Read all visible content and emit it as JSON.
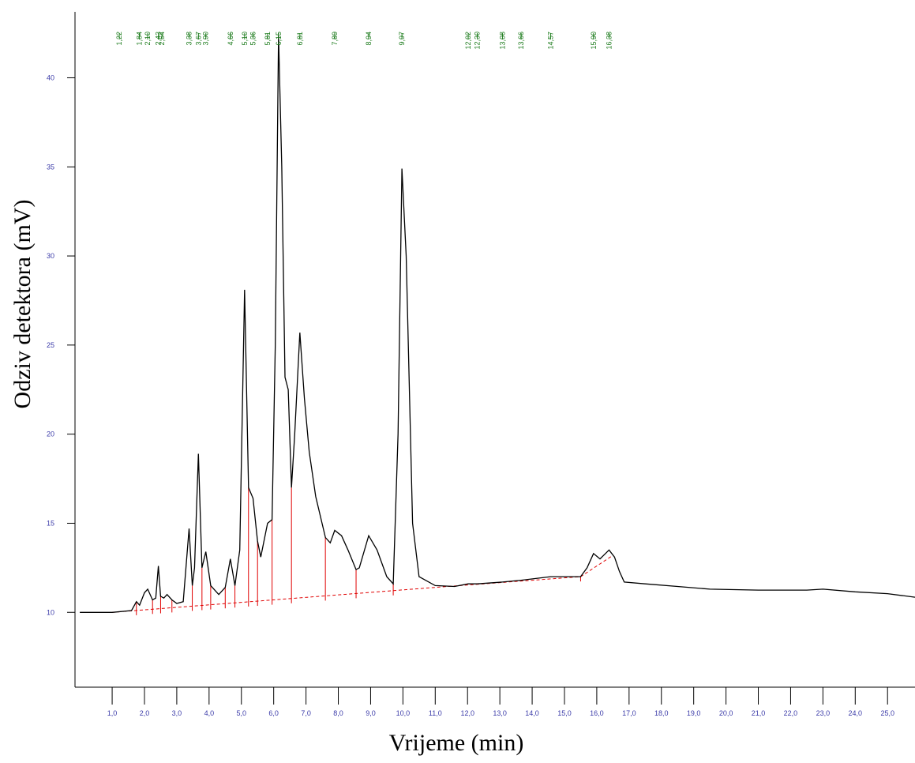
{
  "chart_data": {
    "type": "line",
    "xlabel": "Vrijeme (min)",
    "ylabel": "Odziv detektora (mV)",
    "xlim": [
      -0.15,
      25.85
    ],
    "ylim": [
      5.8,
      43.7
    ],
    "xticks": [
      {
        "value": 1,
        "label": "1,0"
      },
      {
        "value": 2,
        "label": "2,0"
      },
      {
        "value": 3,
        "label": "3,0"
      },
      {
        "value": 4,
        "label": "4,0"
      },
      {
        "value": 5,
        "label": "5,0"
      },
      {
        "value": 6,
        "label": "6,0"
      },
      {
        "value": 7,
        "label": "7,0"
      },
      {
        "value": 8,
        "label": "8,0"
      },
      {
        "value": 9,
        "label": "9,0"
      },
      {
        "value": 10,
        "label": "10,0"
      },
      {
        "value": 11,
        "label": "11,0"
      },
      {
        "value": 12,
        "label": "12,0"
      },
      {
        "value": 13,
        "label": "13,0"
      },
      {
        "value": 14,
        "label": "14,0"
      },
      {
        "value": 15,
        "label": "15,0"
      },
      {
        "value": 16,
        "label": "16,0"
      },
      {
        "value": 17,
        "label": "17,0"
      },
      {
        "value": 18,
        "label": "18,0"
      },
      {
        "value": 19,
        "label": "19,0"
      },
      {
        "value": 20,
        "label": "20,0"
      },
      {
        "value": 21,
        "label": "21,0"
      },
      {
        "value": 22,
        "label": "22,0"
      },
      {
        "value": 23,
        "label": "23,0"
      },
      {
        "value": 24,
        "label": "24,0"
      },
      {
        "value": 25,
        "label": "25,0"
      }
    ],
    "yticks": [
      10,
      15,
      20,
      25,
      30,
      35,
      40
    ],
    "x": [
      0,
      1.0,
      1.6,
      1.75,
      1.85,
      2.0,
      2.1,
      2.25,
      2.35,
      2.43,
      2.5,
      2.6,
      2.7,
      2.85,
      3.0,
      3.2,
      3.38,
      3.48,
      3.55,
      3.67,
      3.78,
      3.9,
      4.05,
      4.3,
      4.5,
      4.66,
      4.8,
      4.95,
      5.1,
      5.22,
      5.36,
      5.5,
      5.6,
      5.81,
      5.95,
      6.05,
      6.15,
      6.25,
      6.35,
      6.45,
      6.55,
      6.65,
      6.81,
      6.95,
      7.1,
      7.3,
      7.6,
      7.75,
      7.89,
      8.1,
      8.3,
      8.55,
      8.65,
      8.94,
      9.2,
      9.5,
      9.7,
      9.85,
      9.97,
      10.1,
      10.3,
      10.5,
      11.0,
      11.6,
      12.02,
      12.3,
      13.08,
      13.66,
      14.57,
      15.5,
      15.7,
      15.9,
      16.1,
      16.38,
      16.55,
      16.7,
      16.85,
      17.5,
      18.5,
      19.5,
      21.0,
      22.5,
      23.0,
      24.0,
      25.0,
      25.85
    ],
    "series": [
      {
        "color": "#000000",
        "values": [
          10,
          10,
          10.1,
          10.6,
          10.4,
          11.1,
          11.3,
          10.7,
          10.8,
          12.6,
          10.9,
          10.8,
          11.0,
          10.7,
          10.5,
          10.6,
          14.7,
          11.5,
          12.5,
          18.9,
          12.5,
          13.4,
          11.5,
          11.0,
          11.4,
          13.0,
          11.5,
          13.5,
          28.1,
          17.0,
          16.4,
          14.0,
          13.1,
          15.0,
          15.2,
          25.0,
          42.4,
          35.0,
          23.2,
          22.5,
          17.0,
          20.0,
          25.7,
          22.0,
          19.0,
          16.5,
          14.2,
          13.9,
          14.6,
          14.3,
          13.5,
          12.4,
          12.5,
          14.3,
          13.5,
          12.0,
          11.6,
          20.0,
          34.9,
          30.0,
          15.0,
          12.0,
          11.5,
          11.45,
          11.6,
          11.6,
          11.7,
          11.8,
          12.0,
          12.0,
          12.5,
          13.3,
          13.0,
          13.5,
          13.1,
          12.3,
          11.7,
          11.6,
          11.45,
          11.3,
          11.25,
          11.25,
          11.3,
          11.15,
          11.05,
          10.85
        ]
      }
    ],
    "baseline": {
      "color": "#e00000",
      "x": [
        1.0,
        11.0,
        15.5,
        16.5
      ],
      "values": [
        10.0,
        11.4,
        12.0,
        13.2
      ]
    },
    "peak_labels": [
      {
        "value": 1.22,
        "label": "1,22"
      },
      {
        "value": 1.84,
        "label": "1,84"
      },
      {
        "value": 2.1,
        "label": "2,10"
      },
      {
        "value": 2.43,
        "label": "2,43"
      },
      {
        "value": 2.54,
        "label": "2,54"
      },
      {
        "value": 3.38,
        "label": "3,38"
      },
      {
        "value": 3.67,
        "label": "3,67"
      },
      {
        "value": 3.9,
        "label": "3,90"
      },
      {
        "value": 4.66,
        "label": "4,66"
      },
      {
        "value": 5.1,
        "label": "5,10"
      },
      {
        "value": 5.36,
        "label": "5,36"
      },
      {
        "value": 5.81,
        "label": "5,81"
      },
      {
        "value": 6.15,
        "label": "6,15"
      },
      {
        "value": 6.81,
        "label": "6,81"
      },
      {
        "value": 7.89,
        "label": "7,89"
      },
      {
        "value": 8.94,
        "label": "8,94"
      },
      {
        "value": 9.97,
        "label": "9,97"
      },
      {
        "value": 12.02,
        "label": "12,02"
      },
      {
        "value": 12.3,
        "label": "12,30"
      },
      {
        "value": 13.08,
        "label": "13,08"
      },
      {
        "value": 13.66,
        "label": "13,66"
      },
      {
        "value": 14.57,
        "label": "14,57"
      },
      {
        "value": 15.9,
        "label": "15,90"
      },
      {
        "value": 16.38,
        "label": "16,38"
      }
    ],
    "drop_lines_x": [
      1.75,
      2.25,
      2.5,
      2.85,
      3.48,
      3.78,
      4.05,
      4.5,
      4.8,
      5.22,
      5.5,
      5.95,
      6.55,
      7.6,
      8.55,
      9.7,
      15.5
    ]
  }
}
